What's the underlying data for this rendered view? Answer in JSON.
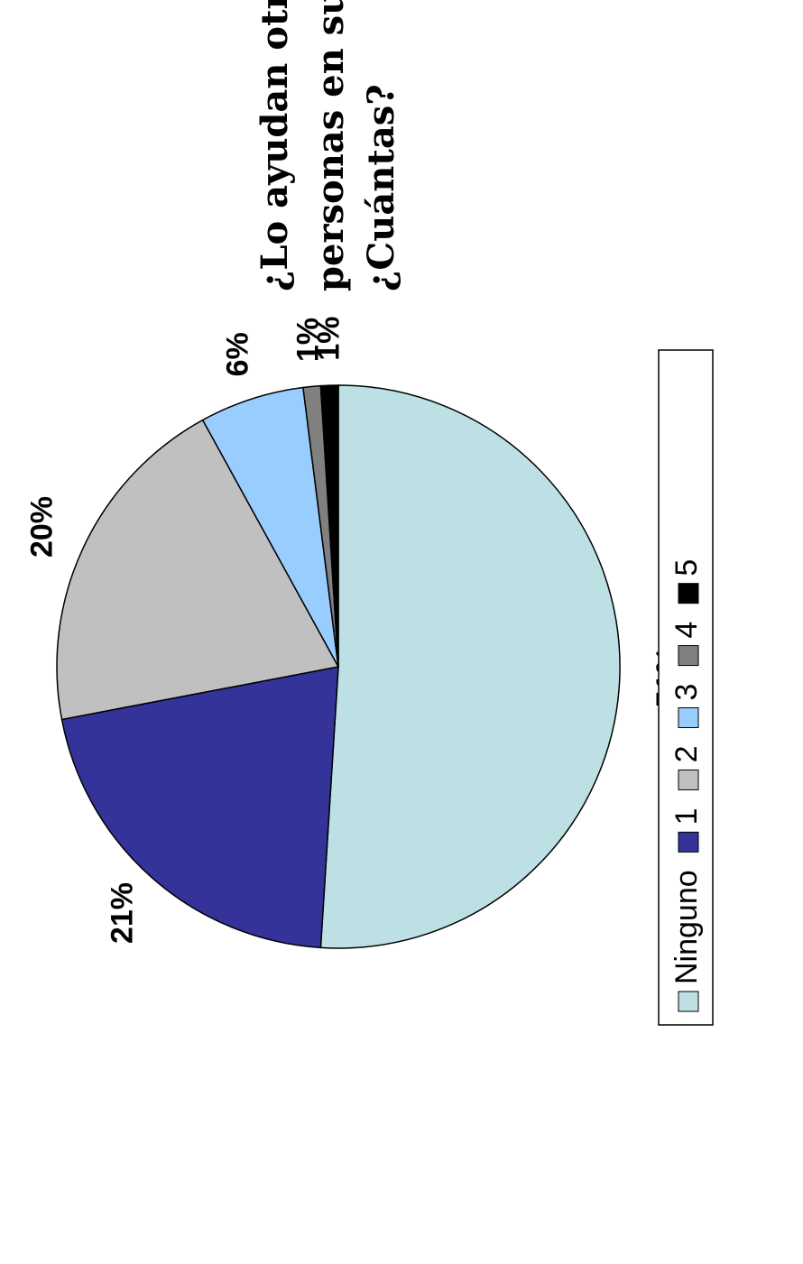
{
  "chart_data": {
    "type": "pie",
    "title_lines": [
      "¿Lo ayudan otras",
      "personas en su trabajo?",
      "¿Cuántas?"
    ],
    "categories": [
      "Ninguno",
      "1",
      "2",
      "3",
      "4",
      "5"
    ],
    "values": [
      51,
      21,
      20,
      6,
      1,
      1
    ],
    "labels": [
      "51%",
      "21%",
      "20%",
      "6%",
      "1%",
      "1%"
    ],
    "colors": [
      "#BCE0E3",
      "#333399",
      "#C0C0C0",
      "#99CCFF",
      "#808080",
      "#000000"
    ],
    "legend_position": "bottom",
    "orientation": "rotated 90° counter-clockwise"
  }
}
